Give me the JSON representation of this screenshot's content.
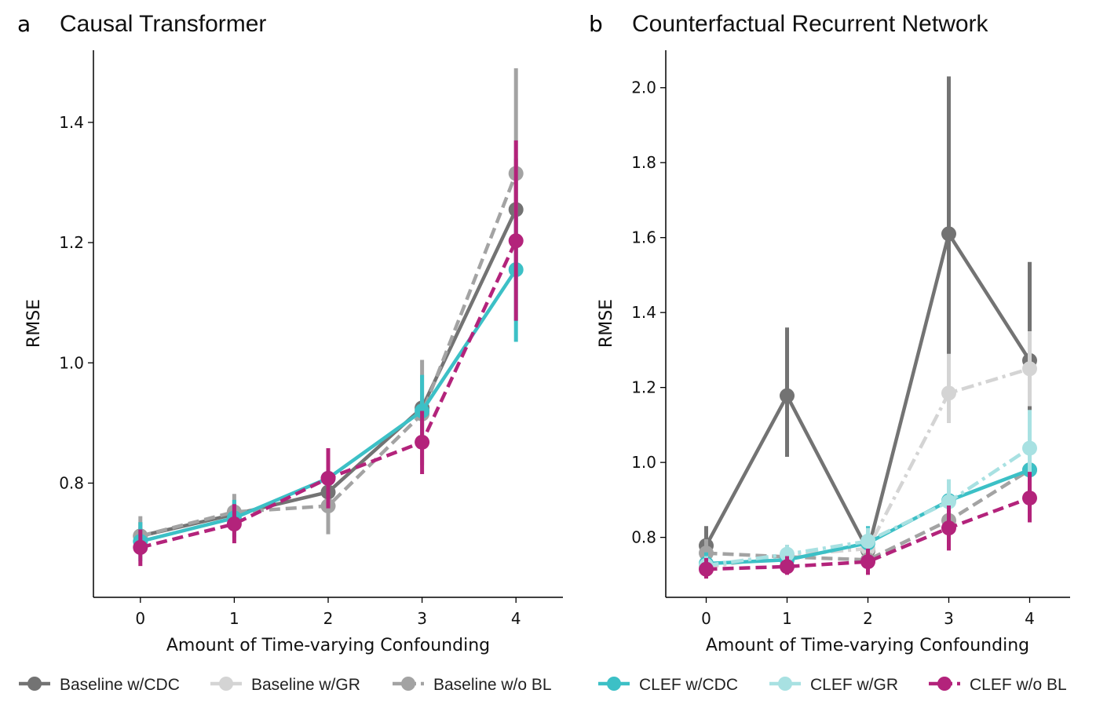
{
  "figure": {
    "legend": [
      {
        "label": "Baseline w/CDC",
        "color": "#737373",
        "dash": "solid",
        "key": "baseline-cdc"
      },
      {
        "label": "Baseline w/GR",
        "color": "#d4d4d4",
        "dash": "dashdot",
        "key": "baseline-gr"
      },
      {
        "label": "Baseline w/o BL",
        "color": "#a3a3a3",
        "dash": "dashed",
        "key": "baseline-wobl"
      },
      {
        "label": "CLEF w/CDC",
        "color": "#3cc0c6",
        "dash": "solid",
        "key": "clef-cdc"
      },
      {
        "label": "CLEF w/GR",
        "color": "#a8e1e2",
        "dash": "dashdot",
        "key": "clef-gr"
      },
      {
        "label": "CLEF w/o BL",
        "color": "#b3237b",
        "dash": "dashed",
        "key": "clef-wobl"
      }
    ]
  },
  "chart_data": [
    {
      "type": "line",
      "panel": "a",
      "title": "Causal Transformer",
      "xlabel": "Amount of Time-varying Confounding",
      "ylabel": "RMSE",
      "x": [
        0,
        1,
        2,
        3,
        4
      ],
      "xlim": [
        -0.5,
        4.5
      ],
      "ylim": [
        0.61,
        1.52
      ],
      "yticks": [
        0.8,
        1.0,
        1.2,
        1.4
      ],
      "ytick_labels": [
        "0.8",
        "1.0",
        "1.2",
        "1.4"
      ],
      "series": [
        {
          "name": "Baseline w/CDC",
          "color": "#737373",
          "dash": "solid",
          "values": [
            0.712,
            0.748,
            0.785,
            0.925,
            1.255
          ],
          "err_low": [
            0.688,
            0.725,
            0.765,
            0.905,
            1.17
          ],
          "err_high": [
            0.735,
            0.772,
            0.805,
            0.945,
            1.34
          ]
        },
        {
          "name": "Baseline w/o BL",
          "color": "#a3a3a3",
          "dash": "dashed",
          "values": [
            0.712,
            0.752,
            0.762,
            0.915,
            1.315
          ],
          "err_low": [
            0.68,
            0.722,
            0.715,
            0.83,
            1.14
          ],
          "err_high": [
            0.745,
            0.782,
            0.81,
            1.005,
            1.49
          ]
        },
        {
          "name": "CLEF w/CDC",
          "color": "#3cc0c6",
          "dash": "solid",
          "values": [
            0.703,
            0.742,
            0.808,
            0.92,
            1.155
          ],
          "err_low": [
            0.67,
            0.71,
            0.78,
            0.865,
            1.035
          ],
          "err_high": [
            0.735,
            0.772,
            0.835,
            0.98,
            1.25
          ]
        },
        {
          "name": "CLEF w/o BL",
          "color": "#b3237b",
          "dash": "dashed",
          "values": [
            0.693,
            0.732,
            0.808,
            0.868,
            1.203
          ],
          "err_low": [
            0.662,
            0.7,
            0.758,
            0.815,
            1.07
          ],
          "err_high": [
            0.723,
            0.765,
            0.858,
            0.92,
            1.37
          ]
        }
      ]
    },
    {
      "type": "line",
      "panel": "b",
      "title": "Counterfactual Recurrent Network",
      "xlabel": "Amount of Time-varying Confounding",
      "ylabel": "RMSE",
      "x": [
        0,
        1,
        2,
        3,
        4
      ],
      "xlim": [
        -0.5,
        4.5
      ],
      "ylim": [
        0.64,
        2.1
      ],
      "yticks": [
        0.8,
        1.0,
        1.2,
        1.4,
        1.6,
        1.8,
        2.0
      ],
      "ytick_labels": [
        "0.8",
        "1.0",
        "1.2",
        "1.4",
        "1.6",
        "1.8",
        "2.0"
      ],
      "series": [
        {
          "name": "Baseline w/CDC",
          "color": "#737373",
          "dash": "solid",
          "values": [
            0.778,
            1.178,
            0.765,
            1.61,
            1.272
          ],
          "err_low": [
            0.73,
            1.015,
            0.735,
            1.2,
            1.02
          ],
          "err_high": [
            0.83,
            1.36,
            0.8,
            2.03,
            1.535
          ]
        },
        {
          "name": "Baseline w/GR",
          "color": "#d4d4d4",
          "dash": "dashdot",
          "values": [
            0.72,
            0.752,
            0.77,
            1.185,
            1.25
          ],
          "err_low": [
            0.7,
            0.73,
            0.745,
            1.105,
            1.15
          ],
          "err_high": [
            0.745,
            0.775,
            0.8,
            1.29,
            1.35
          ]
        },
        {
          "name": "Baseline w/o BL",
          "color": "#a3a3a3",
          "dash": "dashed",
          "values": [
            0.758,
            0.748,
            0.74,
            0.845,
            0.98
          ],
          "err_low": [
            0.72,
            0.72,
            0.71,
            0.79,
            0.93
          ],
          "err_high": [
            0.795,
            0.78,
            0.77,
            0.9,
            1.03
          ]
        },
        {
          "name": "CLEF w/CDC",
          "color": "#3cc0c6",
          "dash": "solid",
          "values": [
            0.73,
            0.74,
            0.785,
            0.898,
            0.98
          ],
          "err_low": [
            0.7,
            0.715,
            0.755,
            0.85,
            0.93
          ],
          "err_high": [
            0.76,
            0.765,
            0.83,
            0.95,
            1.04
          ]
        },
        {
          "name": "CLEF w/GR",
          "color": "#a8e1e2",
          "dash": "dashdot",
          "values": [
            0.725,
            0.755,
            0.79,
            0.895,
            1.038
          ],
          "err_low": [
            0.7,
            0.73,
            0.76,
            0.84,
            0.95
          ],
          "err_high": [
            0.75,
            0.78,
            0.825,
            0.955,
            1.14
          ]
        },
        {
          "name": "CLEF w/o BL",
          "color": "#b3237b",
          "dash": "dashed",
          "values": [
            0.715,
            0.722,
            0.735,
            0.825,
            0.905
          ],
          "err_low": [
            0.69,
            0.7,
            0.7,
            0.765,
            0.84
          ],
          "err_high": [
            0.745,
            0.75,
            0.77,
            0.885,
            0.975
          ]
        }
      ]
    }
  ]
}
